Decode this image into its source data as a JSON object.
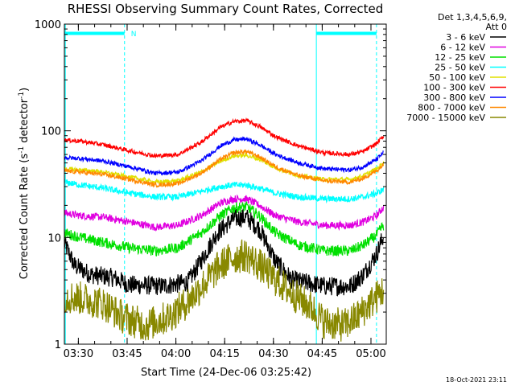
{
  "chart_data": {
    "type": "line",
    "title": "RHESSI Observing Summary Count Rates, Corrected",
    "ylabel_main": "Corrected Count Rate (s",
    "ylabel_sup1": "-1",
    "ylabel_mid": " detector",
    "ylabel_sup2": "-1",
    "ylabel_end": ")",
    "xlabel": "Start Time (24-Dec-06 03:25:42)",
    "footer": "18-Oct-2021 23:11",
    "legend_header": [
      "Det 1,3,4,5,6,9,",
      "Att 0"
    ],
    "y_scale": "log",
    "ylim": [
      1,
      1000
    ],
    "y_ticks": [
      {
        "value": 1,
        "label": "1"
      },
      {
        "value": 10,
        "label": "10"
      },
      {
        "value": 100,
        "label": "100"
      },
      {
        "value": 1000,
        "label": "1000"
      }
    ],
    "xlim_minutes": [
      0,
      99
    ],
    "x_ticks": [
      {
        "minute": 4.3,
        "label": "03:30"
      },
      {
        "minute": 19.3,
        "label": "03:45"
      },
      {
        "minute": 34.3,
        "label": "04:00"
      },
      {
        "minute": 49.3,
        "label": "04:15"
      },
      {
        "minute": 64.3,
        "label": "04:30"
      },
      {
        "minute": 79.3,
        "label": "04:45"
      },
      {
        "minute": 94.3,
        "label": "05:00"
      }
    ],
    "night_bars": [
      {
        "start": 0,
        "end": 18.5,
        "label": "N"
      },
      {
        "start": 77.5,
        "end": 96,
        "label": ""
      }
    ],
    "boundary_lines": [
      {
        "minute": 0.3,
        "style": "solid"
      },
      {
        "minute": 18.5,
        "style": "dashed"
      },
      {
        "minute": 77.5,
        "style": "solid"
      },
      {
        "minute": 96,
        "style": "dashed"
      }
    ],
    "series": [
      {
        "name": "3 - 6 keV",
        "color": "#000000",
        "points": [
          [
            0,
            9
          ],
          [
            3,
            5.5
          ],
          [
            8,
            4.5
          ],
          [
            15,
            4.2
          ],
          [
            20,
            3.6
          ],
          [
            30,
            3.5
          ],
          [
            38,
            3.8
          ],
          [
            42,
            6
          ],
          [
            47,
            11
          ],
          [
            52,
            15
          ],
          [
            56,
            15.5
          ],
          [
            60,
            12
          ],
          [
            65,
            6
          ],
          [
            70,
            4
          ],
          [
            80,
            3.5
          ],
          [
            88,
            3.5
          ],
          [
            92,
            4.5
          ],
          [
            96,
            7
          ],
          [
            98,
            10
          ]
        ]
      },
      {
        "name": "6 - 12 keV",
        "color": "#e000e0",
        "points": [
          [
            0,
            17
          ],
          [
            5,
            16
          ],
          [
            12,
            15.5
          ],
          [
            20,
            14
          ],
          [
            28,
            12.5
          ],
          [
            35,
            13
          ],
          [
            42,
            16
          ],
          [
            48,
            21
          ],
          [
            52,
            23
          ],
          [
            56,
            23
          ],
          [
            60,
            20
          ],
          [
            65,
            16
          ],
          [
            72,
            14
          ],
          [
            80,
            13
          ],
          [
            88,
            13
          ],
          [
            92,
            14
          ],
          [
            96,
            16
          ],
          [
            98,
            19
          ]
        ]
      },
      {
        "name": "12 - 25 keV",
        "color": "#00e000",
        "points": [
          [
            0,
            11
          ],
          [
            5,
            10
          ],
          [
            12,
            9
          ],
          [
            20,
            8
          ],
          [
            28,
            7.5
          ],
          [
            35,
            8
          ],
          [
            42,
            11
          ],
          [
            48,
            16
          ],
          [
            52,
            19
          ],
          [
            56,
            19.5
          ],
          [
            60,
            16
          ],
          [
            65,
            11
          ],
          [
            72,
            8.5
          ],
          [
            80,
            7.5
          ],
          [
            88,
            7.5
          ],
          [
            92,
            8.5
          ],
          [
            96,
            10.5
          ],
          [
            98,
            13
          ]
        ]
      },
      {
        "name": "25 - 50 keV",
        "color": "#00ffff",
        "points": [
          [
            0,
            33
          ],
          [
            5,
            31
          ],
          [
            12,
            29
          ],
          [
            20,
            26
          ],
          [
            28,
            24
          ],
          [
            35,
            24
          ],
          [
            42,
            27
          ],
          [
            48,
            30
          ],
          [
            52,
            31
          ],
          [
            56,
            31
          ],
          [
            60,
            29
          ],
          [
            65,
            26
          ],
          [
            72,
            24
          ],
          [
            80,
            23
          ],
          [
            88,
            23
          ],
          [
            92,
            24
          ],
          [
            96,
            26
          ],
          [
            98,
            28
          ]
        ]
      },
      {
        "name": "50 - 100 keV",
        "color": "#e0e000",
        "points": [
          [
            0,
            44
          ],
          [
            5,
            43
          ],
          [
            12,
            41
          ],
          [
            20,
            37
          ],
          [
            28,
            33
          ],
          [
            35,
            34
          ],
          [
            42,
            41
          ],
          [
            48,
            52
          ],
          [
            52,
            58
          ],
          [
            56,
            59
          ],
          [
            60,
            54
          ],
          [
            65,
            45
          ],
          [
            72,
            38
          ],
          [
            80,
            35
          ],
          [
            88,
            35
          ],
          [
            92,
            38
          ],
          [
            96,
            44
          ],
          [
            98,
            50
          ]
        ]
      },
      {
        "name": "100 - 300 keV",
        "color": "#ff0000",
        "points": [
          [
            0,
            82
          ],
          [
            5,
            80
          ],
          [
            12,
            74
          ],
          [
            20,
            65
          ],
          [
            28,
            58
          ],
          [
            35,
            60
          ],
          [
            42,
            78
          ],
          [
            48,
            108
          ],
          [
            52,
            122
          ],
          [
            56,
            125
          ],
          [
            60,
            110
          ],
          [
            65,
            88
          ],
          [
            72,
            72
          ],
          [
            80,
            62
          ],
          [
            88,
            60
          ],
          [
            92,
            64
          ],
          [
            96,
            76
          ],
          [
            98,
            88
          ]
        ]
      },
      {
        "name": "300 - 800 keV",
        "color": "#0000ff",
        "points": [
          [
            0,
            56
          ],
          [
            5,
            55
          ],
          [
            12,
            52
          ],
          [
            20,
            46
          ],
          [
            28,
            40
          ],
          [
            35,
            41
          ],
          [
            42,
            52
          ],
          [
            48,
            72
          ],
          [
            52,
            82
          ],
          [
            56,
            84
          ],
          [
            60,
            74
          ],
          [
            65,
            60
          ],
          [
            72,
            50
          ],
          [
            80,
            44
          ],
          [
            88,
            43
          ],
          [
            92,
            46
          ],
          [
            96,
            54
          ],
          [
            98,
            62
          ]
        ]
      },
      {
        "name": "800 - 7000 keV",
        "color": "#ff8800",
        "points": [
          [
            0,
            42
          ],
          [
            5,
            41
          ],
          [
            12,
            39
          ],
          [
            20,
            35
          ],
          [
            28,
            31
          ],
          [
            35,
            32
          ],
          [
            42,
            40
          ],
          [
            48,
            54
          ],
          [
            52,
            62
          ],
          [
            56,
            64
          ],
          [
            60,
            57
          ],
          [
            65,
            46
          ],
          [
            72,
            38
          ],
          [
            80,
            34
          ],
          [
            88,
            33
          ],
          [
            92,
            36
          ],
          [
            96,
            42
          ],
          [
            98,
            48
          ]
        ]
      },
      {
        "name": "7000 - 15000 keV",
        "color": "#888800",
        "points": [
          [
            0,
            2.8
          ],
          [
            5,
            2.7
          ],
          [
            12,
            2.4
          ],
          [
            18,
            1.8
          ],
          [
            25,
            1.5
          ],
          [
            32,
            1.8
          ],
          [
            38,
            2.5
          ],
          [
            44,
            4
          ],
          [
            48,
            5.5
          ],
          [
            52,
            6.5
          ],
          [
            56,
            6.8
          ],
          [
            60,
            5.5
          ],
          [
            65,
            4
          ],
          [
            70,
            3
          ],
          [
            76,
            2.2
          ],
          [
            80,
            1.6
          ],
          [
            86,
            1.5
          ],
          [
            90,
            1.8
          ],
          [
            94,
            2.4
          ],
          [
            98,
            3.2
          ]
        ]
      }
    ]
  }
}
